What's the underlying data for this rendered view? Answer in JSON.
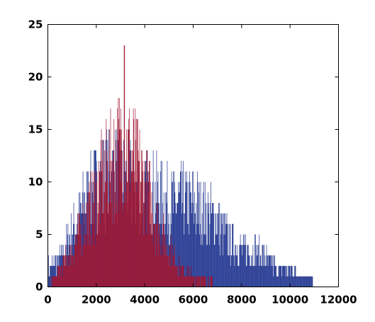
{
  "chart_data": {
    "type": "bar",
    "title": "",
    "xlabel": "",
    "ylabel": "",
    "xlim": [
      0,
      12000
    ],
    "ylim": [
      0,
      25
    ],
    "xticks": [
      0,
      2000,
      4000,
      6000,
      8000,
      10000,
      12000
    ],
    "yticks": [
      0,
      5,
      10,
      15,
      20,
      25
    ],
    "xtick_labels": [
      "0",
      "2000",
      "4000",
      "6000",
      "8000",
      "10000",
      "12000"
    ],
    "ytick_labels": [
      "0",
      "5",
      "10",
      "15",
      "20",
      "25"
    ],
    "grid": false,
    "legend": "none",
    "bin_width": 20,
    "series": [
      {
        "color": "#1a2f8c",
        "bins": [
          {
            "x": 0,
            "y": 2
          },
          {
            "x": 500,
            "y": 3
          },
          {
            "x": 1000,
            "y": 6
          },
          {
            "x": 1500,
            "y": 9
          },
          {
            "x": 2000,
            "y": 11
          },
          {
            "x": 2500,
            "y": 12
          },
          {
            "x": 3000,
            "y": 12
          },
          {
            "x": 3500,
            "y": 11
          },
          {
            "x": 4000,
            "y": 10
          },
          {
            "x": 4500,
            "y": 10
          },
          {
            "x": 5000,
            "y": 9
          },
          {
            "x": 5500,
            "y": 9
          },
          {
            "x": 6000,
            "y": 9
          },
          {
            "x": 6500,
            "y": 8
          },
          {
            "x": 7000,
            "y": 7
          },
          {
            "x": 7500,
            "y": 5
          },
          {
            "x": 8000,
            "y": 4
          },
          {
            "x": 8500,
            "y": 4
          },
          {
            "x": 9000,
            "y": 3
          },
          {
            "x": 9500,
            "y": 2
          },
          {
            "x": 10000,
            "y": 2
          },
          {
            "x": 10500,
            "y": 1
          },
          {
            "x": 10900,
            "y": 1
          },
          {
            "x": 11000,
            "y": 0
          }
        ]
      },
      {
        "color": "#a01530",
        "bins": [
          {
            "x": 0,
            "y": 0
          },
          {
            "x": 250,
            "y": 1
          },
          {
            "x": 500,
            "y": 2
          },
          {
            "x": 1000,
            "y": 4
          },
          {
            "x": 1500,
            "y": 7
          },
          {
            "x": 2000,
            "y": 10
          },
          {
            "x": 2500,
            "y": 13
          },
          {
            "x": 3000,
            "y": 15
          },
          {
            "x": 3500,
            "y": 14
          },
          {
            "x": 4000,
            "y": 11
          },
          {
            "x": 4500,
            "y": 7
          },
          {
            "x": 5000,
            "y": 4
          },
          {
            "x": 5500,
            "y": 2
          },
          {
            "x": 6000,
            "y": 1
          },
          {
            "x": 6500,
            "y": 1
          },
          {
            "x": 7000,
            "y": 0
          }
        ],
        "peak": {
          "x": 3150,
          "y": 23
        }
      }
    ]
  }
}
